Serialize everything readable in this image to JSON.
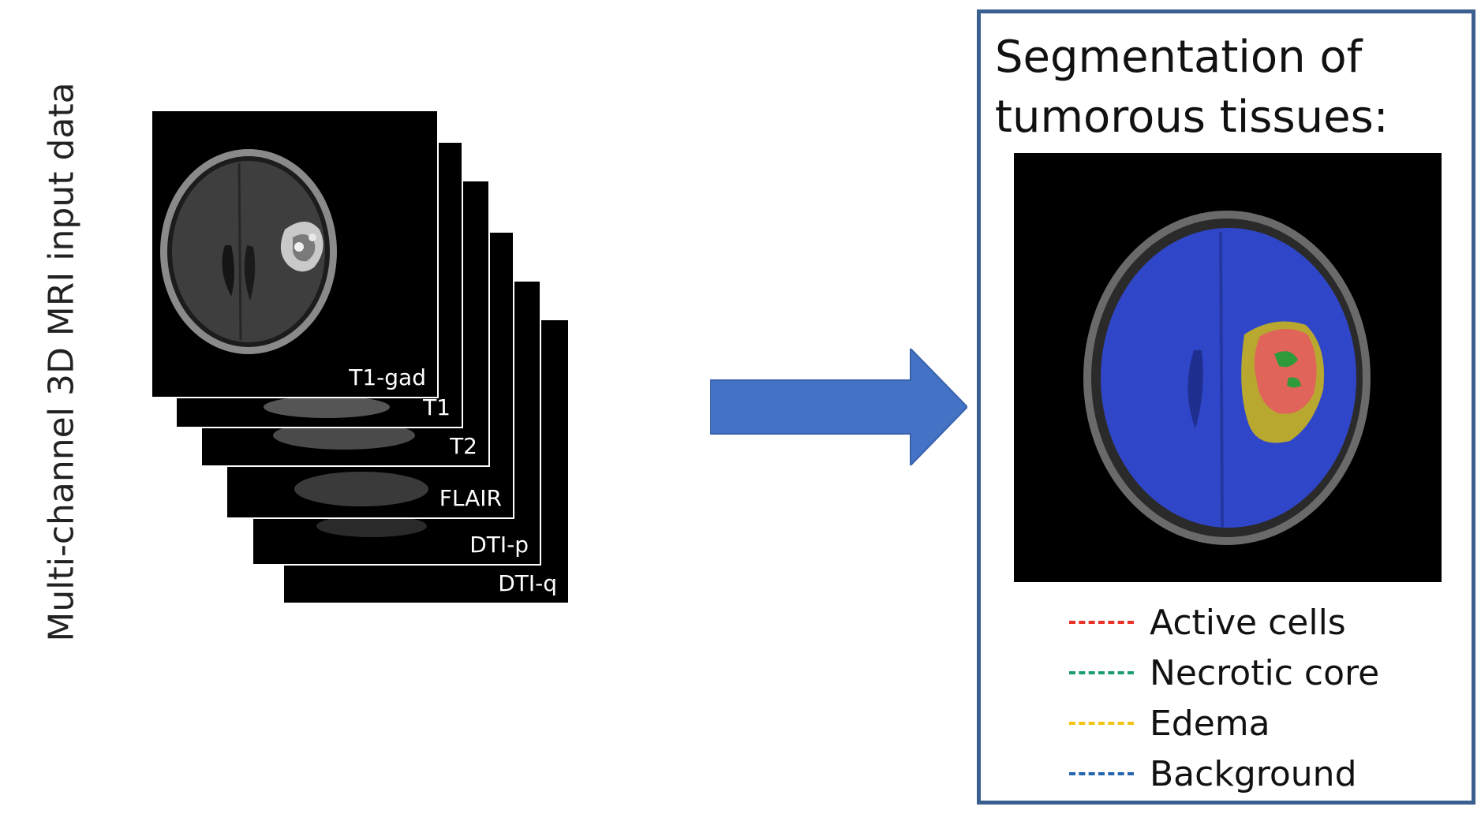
{
  "input_label": "Multi-channel 3D MRI input data",
  "slices": [
    {
      "label": "DTI-q"
    },
    {
      "label": "DTI-p"
    },
    {
      "label": "FLAIR"
    },
    {
      "label": "T2"
    },
    {
      "label": "T1"
    },
    {
      "label": "T1-gad"
    }
  ],
  "panel": {
    "title_line1": "Segmentation of",
    "title_line2": "tumorous tissues:"
  },
  "legend": [
    {
      "label": "Active cells",
      "color": "#e8322a"
    },
    {
      "label": "Necrotic core",
      "color": "#1a9e6e"
    },
    {
      "label": "Edema",
      "color": "#f2c418"
    },
    {
      "label": "Background",
      "color": "#2566b0"
    }
  ],
  "colors": {
    "arrow": "#4472c4",
    "panel_border": "#3b5f8f"
  }
}
